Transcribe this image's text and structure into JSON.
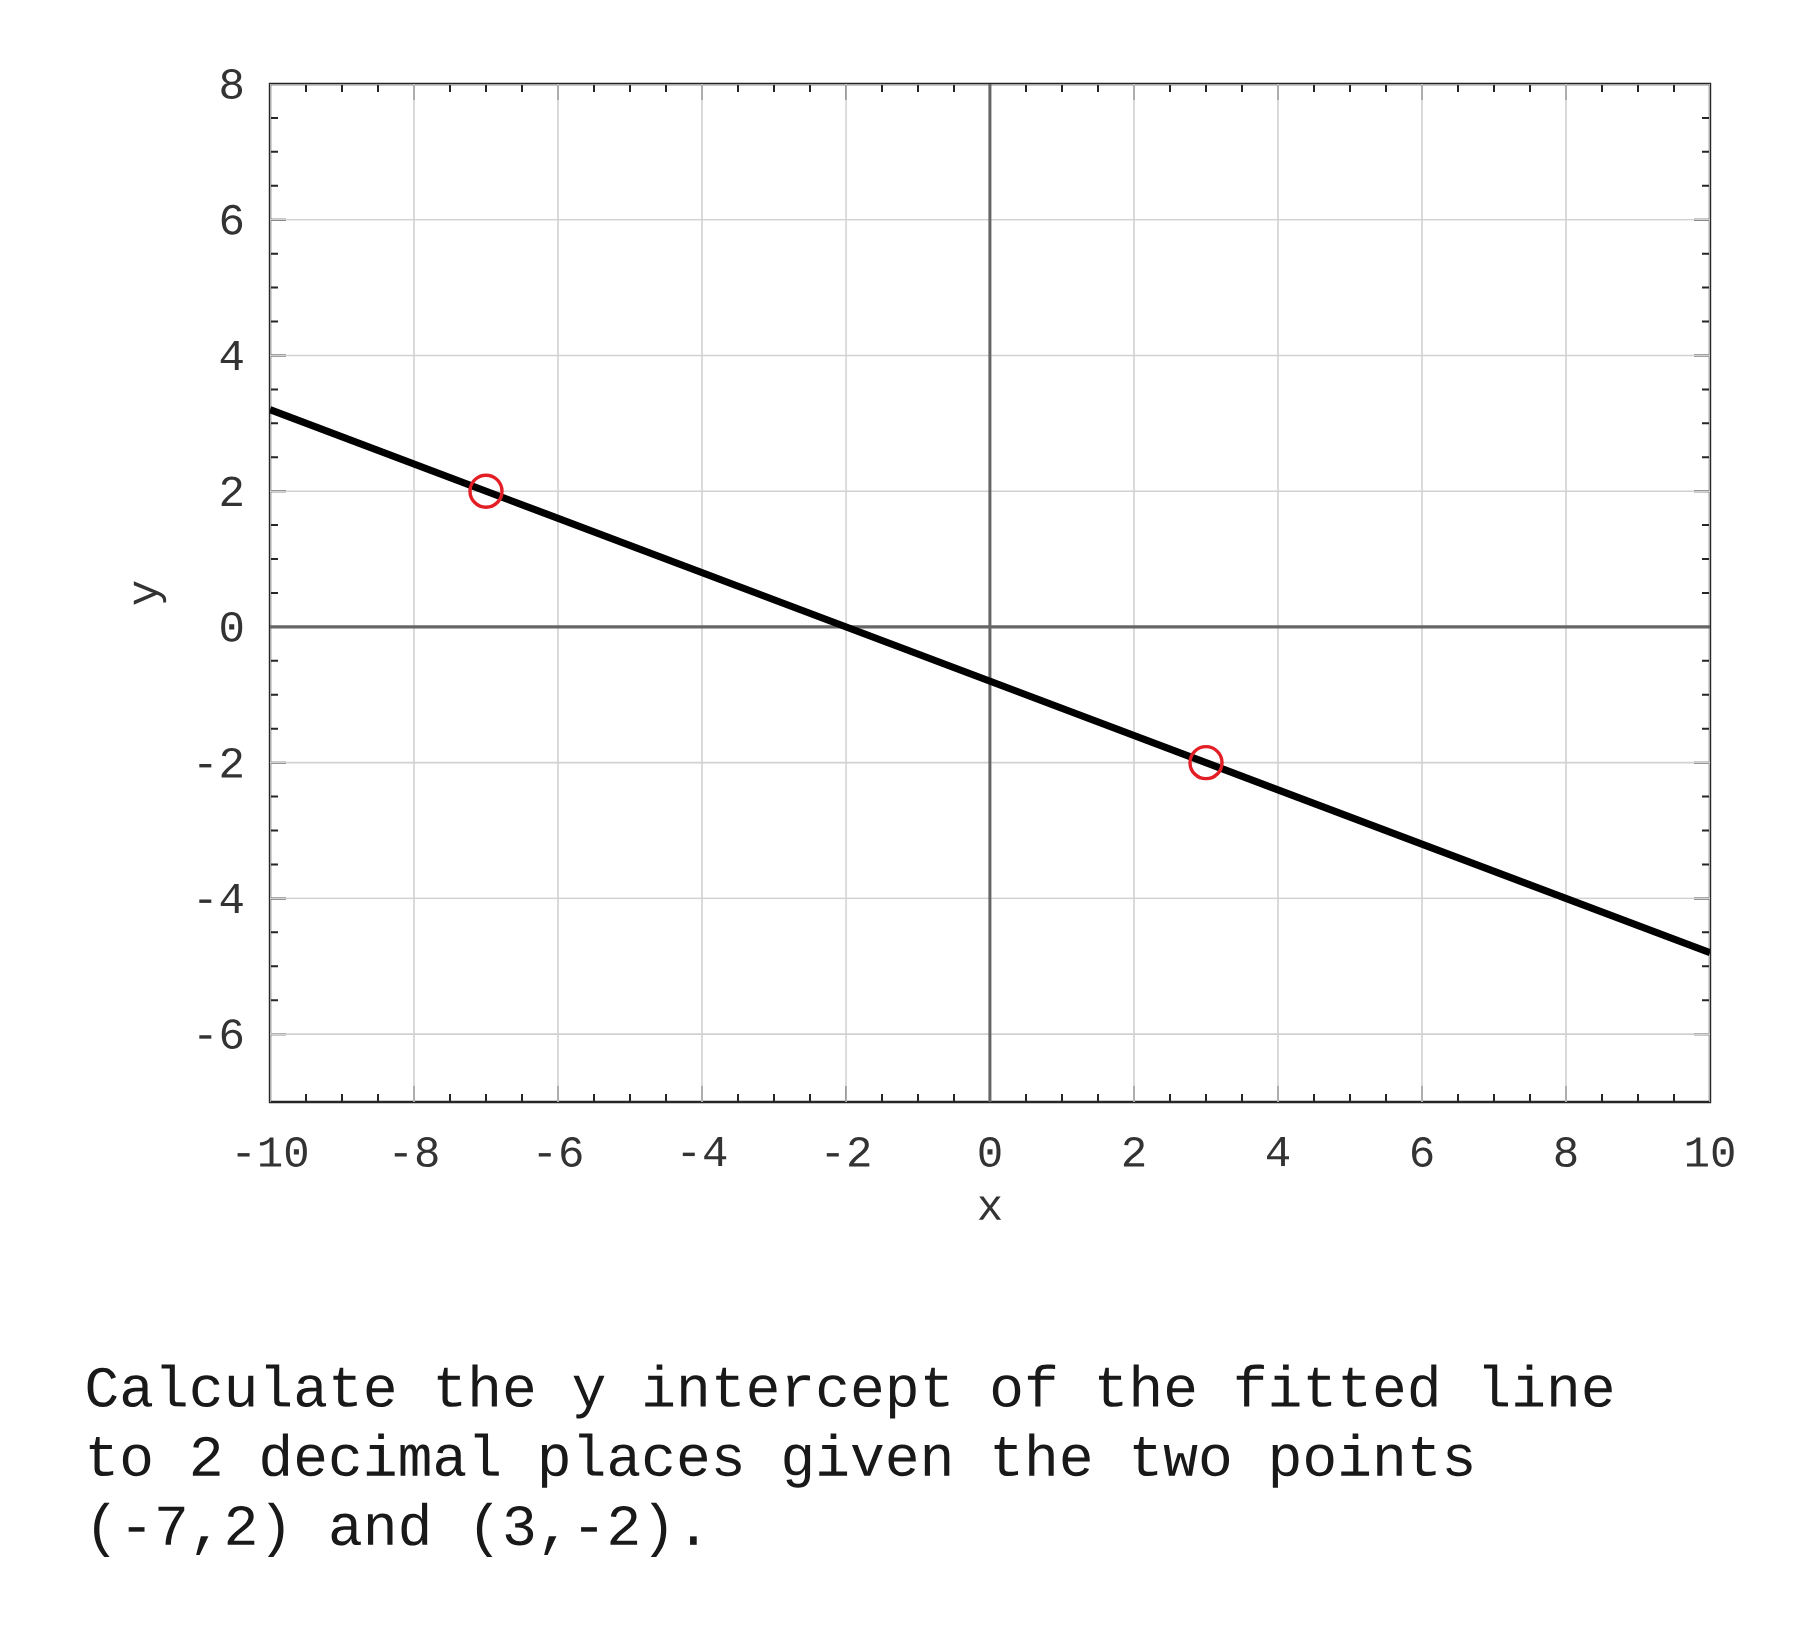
{
  "chart_data": {
    "type": "line",
    "xlabel": "x",
    "ylabel": "y",
    "series": [
      {
        "color": "#000000",
        "x": [
          -10,
          10
        ],
        "values": [
          3.2,
          -4.8
        ]
      },
      {
        "type": "scatter",
        "color": "#e31e24",
        "marker": "circle",
        "x": [
          -7,
          3
        ],
        "values": [
          2,
          -2
        ]
      }
    ],
    "xlim": [
      -10,
      10
    ],
    "ylim": [
      -7,
      8
    ],
    "xticks": [
      -10,
      -8,
      -6,
      -4,
      -2,
      0,
      2,
      4,
      6,
      8,
      10
    ],
    "yticks": [
      -6,
      -4,
      -2,
      0,
      2,
      4,
      6,
      8
    ],
    "grid": true,
    "annotations": [
      "Calculate the y intercept of the fitted line to 2 decimal places given the two points (-7,2) and (3,-2)."
    ]
  }
}
